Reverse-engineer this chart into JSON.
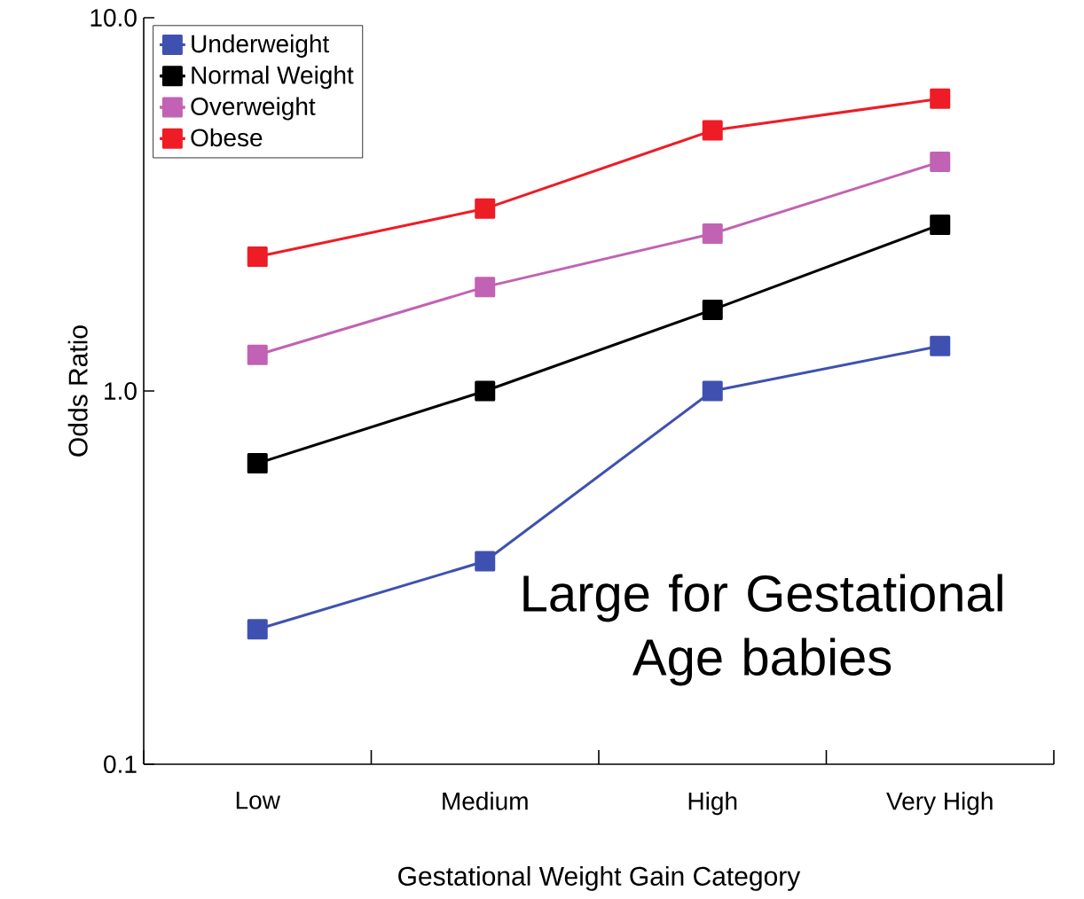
{
  "chart_data": {
    "type": "line",
    "xlabel": "Gestational Weight Gain Category",
    "ylabel": "Odds Ratio",
    "categories": [
      "Low",
      "Medium",
      "High",
      "Very High"
    ],
    "series": [
      {
        "name": "Underweight",
        "color": "#3f51b0",
        "values": [
          0.23,
          0.35,
          1.0,
          1.32
        ]
      },
      {
        "name": "Normal Weight",
        "color": "#000000",
        "values": [
          0.64,
          1.0,
          1.65,
          2.79
        ]
      },
      {
        "name": "Overweight",
        "color": "#c262b4",
        "values": [
          1.25,
          1.9,
          2.64,
          4.11
        ]
      },
      {
        "name": "Obese",
        "color": "#ee1c25",
        "values": [
          2.29,
          3.08,
          4.99,
          6.07
        ]
      }
    ],
    "log": "y",
    "ylim": [
      0.1,
      10
    ],
    "yticks": [
      0.1,
      {
        "value": 1,
        "label": "1.0"
      },
      {
        "value": 10,
        "label": "10.0"
      }
    ],
    "legend": "top left",
    "marker": "square",
    "line_style": "solid",
    "grid": false,
    "annotations": [
      "Large for Gestational Age babies"
    ]
  }
}
